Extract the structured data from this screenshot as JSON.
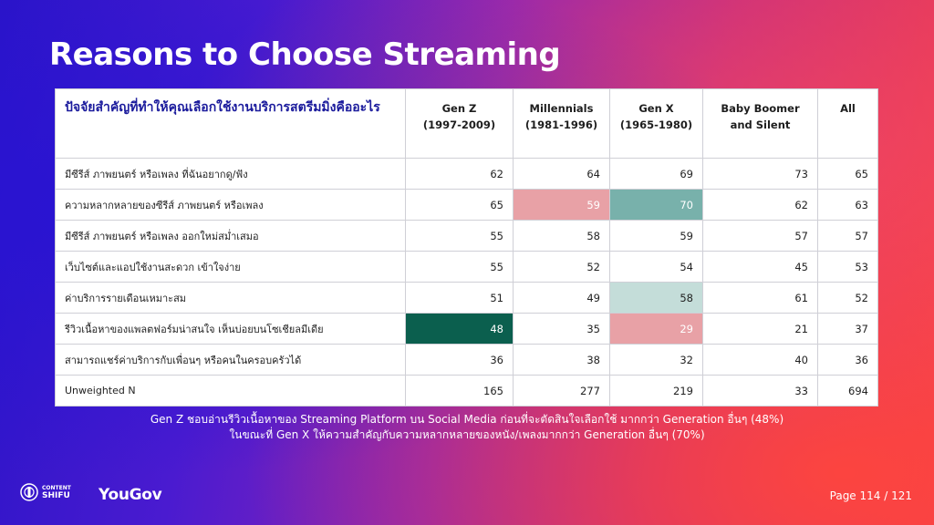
{
  "title": "Reasons to Choose Streaming",
  "table": {
    "question": "ปัจจัยสำคัญที่ทำให้คุณเลือกใช้งานบริการสตรีมมิ่งคืออะไร",
    "columns": [
      {
        "name": "Gen Z",
        "sub": "(1997-2009)"
      },
      {
        "name": "Millennials",
        "sub": "(1981-1996)"
      },
      {
        "name": "Gen X",
        "sub": "(1965-1980)"
      },
      {
        "name": "Baby Boomer",
        "sub": "and Silent"
      },
      {
        "name": "All",
        "sub": ""
      }
    ],
    "rows": [
      {
        "label": "มีซีรีส์ ภาพยนตร์ หรือเพลง ที่ฉันอยากดู/ฟัง",
        "values": [
          "62",
          "64",
          "69",
          "73",
          "65"
        ],
        "highlights": [
          "",
          "",
          "",
          "",
          ""
        ]
      },
      {
        "label": "ความหลากหลายของซีรีส์ ภาพยนตร์ หรือเพลง",
        "values": [
          "65",
          "59",
          "70",
          "62",
          "63"
        ],
        "highlights": [
          "",
          "pink",
          "teal",
          "",
          ""
        ]
      },
      {
        "label": "มีซีรีส์ ภาพยนตร์ หรือเพลง ออกใหม่สม่ำเสมอ",
        "values": [
          "55",
          "58",
          "59",
          "57",
          "57"
        ],
        "highlights": [
          "",
          "",
          "",
          "",
          ""
        ]
      },
      {
        "label": "เว็บไซต์และแอปใช้งานสะดวก เข้าใจง่าย",
        "values": [
          "55",
          "52",
          "54",
          "45",
          "53"
        ],
        "highlights": [
          "",
          "",
          "",
          "",
          ""
        ]
      },
      {
        "label": "ค่าบริการรายเดือนเหมาะสม",
        "values": [
          "51",
          "49",
          "58",
          "61",
          "52"
        ],
        "highlights": [
          "",
          "",
          "lightteal",
          "",
          ""
        ]
      },
      {
        "label": "รีวิวเนื้อหาของแพลตฟอร์มน่าสนใจ เห็นบ่อยบนโซเชียลมีเดีย",
        "values": [
          "48",
          "35",
          "29",
          "21",
          "37"
        ],
        "highlights": [
          "dark",
          "",
          "pink",
          "",
          ""
        ]
      },
      {
        "label": "สามารถแชร์ค่าบริการกับเพื่อนๆ หรือคนในครอบครัวได้",
        "values": [
          "36",
          "38",
          "32",
          "40",
          "36"
        ],
        "highlights": [
          "",
          "",
          "",
          "",
          ""
        ]
      },
      {
        "label": "Unweighted N",
        "values": [
          "165",
          "277",
          "219",
          "33",
          "694"
        ],
        "highlights": [
          "",
          "",
          "",
          "",
          ""
        ]
      }
    ]
  },
  "notes": {
    "line1": "Gen Z ชอบอ่านรีวิวเนื้อหาของ Streaming Platform บน Social Media ก่อนที่จะตัดสินใจเลือกใช้ มากกว่า Generation อื่นๆ (48%)",
    "line2": "ในขณะที่ Gen X ให้ความสำคัญกับความหลากหลายของหนัง/เพลงมากกว่า Generation อื่นๆ (70%)"
  },
  "footer": {
    "shifu_line1": "CONTENT",
    "shifu_line2": "SHIFU",
    "yougov": "YouGov",
    "page": "Page 114 / 121"
  },
  "colors": {
    "pink": "#e8a1a6",
    "teal": "#78b1ab",
    "lightteal": "#c4ddd9",
    "dark": "#0b5f4e",
    "question": "#1a1a9c"
  }
}
